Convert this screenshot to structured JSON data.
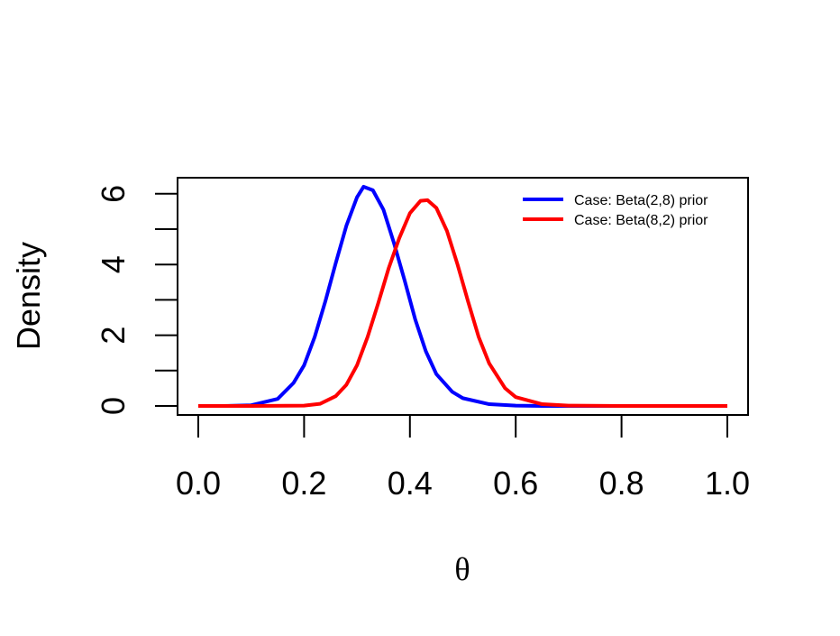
{
  "chart_data": {
    "type": "line",
    "xlabel": "θ",
    "ylabel": "Density",
    "xlim": [
      0,
      1
    ],
    "ylim": [
      0,
      6.5
    ],
    "x_ticks": [
      "0.0",
      "0.2",
      "0.4",
      "0.6",
      "0.8",
      "1.0"
    ],
    "y_ticks": [
      "0",
      "2",
      "4",
      "6"
    ],
    "y_minor_ticks": [
      1,
      3,
      5
    ],
    "grid": false,
    "legend_position": "top-right",
    "legend_entries": [
      "Case: Beta(2,8) prior",
      "Case: Beta(8,2) prior"
    ],
    "series": [
      {
        "name": "Case: Beta(2,8) prior",
        "color": "#0000ff",
        "x": [
          0.0,
          0.05,
          0.1,
          0.15,
          0.18,
          0.2,
          0.22,
          0.24,
          0.26,
          0.28,
          0.3,
          0.3125,
          0.33,
          0.35,
          0.37,
          0.39,
          0.41,
          0.43,
          0.45,
          0.48,
          0.5,
          0.55,
          0.6,
          0.65,
          0.7,
          0.8,
          0.9,
          1.0
        ],
        "values": [
          0.0,
          0.0,
          0.02,
          0.2,
          0.65,
          1.15,
          1.95,
          2.95,
          4.05,
          5.1,
          5.9,
          6.2,
          6.1,
          5.55,
          4.6,
          3.55,
          2.45,
          1.55,
          0.9,
          0.4,
          0.22,
          0.05,
          0.01,
          0.0,
          0.0,
          0.0,
          0.0,
          0.0
        ]
      },
      {
        "name": "Case: Beta(8,2) prior",
        "color": "#ff0000",
        "x": [
          0.0,
          0.1,
          0.2,
          0.23,
          0.26,
          0.28,
          0.3,
          0.32,
          0.34,
          0.36,
          0.38,
          0.4,
          0.42,
          0.4333,
          0.45,
          0.47,
          0.49,
          0.51,
          0.53,
          0.55,
          0.58,
          0.6,
          0.65,
          0.7,
          0.8,
          0.9,
          1.0
        ],
        "values": [
          0.0,
          0.0,
          0.01,
          0.06,
          0.28,
          0.6,
          1.15,
          1.95,
          2.9,
          3.9,
          4.75,
          5.45,
          5.8,
          5.82,
          5.6,
          4.95,
          4.0,
          2.95,
          1.95,
          1.2,
          0.5,
          0.25,
          0.05,
          0.01,
          0.0,
          0.0,
          0.0
        ]
      }
    ]
  }
}
